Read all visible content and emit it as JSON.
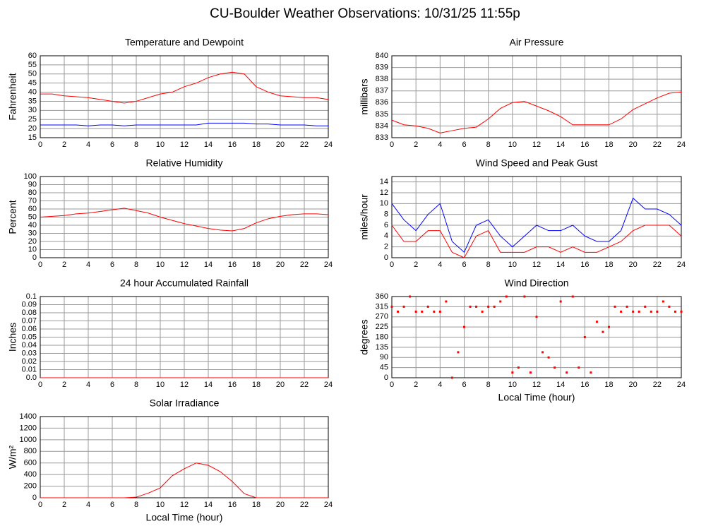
{
  "title": "CU-Boulder Weather Observations: 10/31/25 11:55p",
  "chart_data": [
    {
      "type": "line",
      "title": "Temperature and Dewpoint",
      "ylabel": "Fahrenheit",
      "x": [
        0,
        1,
        2,
        3,
        4,
        5,
        6,
        7,
        8,
        9,
        10,
        11,
        12,
        13,
        14,
        15,
        16,
        17,
        18,
        19,
        20,
        21,
        22,
        23,
        24
      ],
      "series": [
        {
          "color": "#ff0000",
          "values": [
            39,
            39,
            38,
            37.5,
            37,
            36,
            35,
            34,
            35,
            37,
            39,
            40,
            43,
            45,
            48,
            50,
            51,
            50,
            43,
            40,
            38,
            37.5,
            37,
            37,
            36
          ]
        },
        {
          "color": "#0000ff",
          "values": [
            22,
            22,
            22,
            22,
            21.5,
            22,
            22,
            21.5,
            22,
            22,
            22,
            22,
            22,
            22,
            23,
            23,
            23,
            23,
            22.5,
            22.5,
            22,
            22,
            22,
            21.5,
            21.5
          ]
        }
      ],
      "xlim": [
        0,
        24
      ],
      "xticks": [
        0,
        2,
        4,
        6,
        8,
        10,
        12,
        14,
        16,
        18,
        20,
        22,
        24
      ],
      "ylim": [
        15,
        60
      ],
      "yticks": [
        15,
        20,
        25,
        30,
        35,
        40,
        45,
        50,
        55,
        60
      ],
      "grid": true
    },
    {
      "type": "line",
      "title": "Air Pressure",
      "ylabel": "millibars",
      "x": [
        0,
        1,
        2,
        3,
        4,
        5,
        6,
        7,
        8,
        9,
        10,
        11,
        12,
        13,
        14,
        15,
        16,
        17,
        18,
        19,
        20,
        21,
        22,
        23,
        24
      ],
      "series": [
        {
          "color": "#ff0000",
          "values": [
            834.5,
            834.1,
            834,
            833.8,
            833.4,
            833.6,
            833.8,
            833.9,
            834.6,
            835.5,
            836,
            836.1,
            835.7,
            835.3,
            834.8,
            834.1,
            834.1,
            834.1,
            834.1,
            834.6,
            835.4,
            835.9,
            836.4,
            836.8,
            836.9
          ]
        }
      ],
      "xlim": [
        0,
        24
      ],
      "xticks": [
        0,
        2,
        4,
        6,
        8,
        10,
        12,
        14,
        16,
        18,
        20,
        22,
        24
      ],
      "ylim": [
        833,
        840
      ],
      "yticks": [
        833,
        834,
        835,
        836,
        837,
        838,
        839,
        840
      ],
      "grid": true
    },
    {
      "type": "line",
      "title": "Relative Humidity",
      "ylabel": "Percent",
      "x": [
        0,
        1,
        2,
        3,
        4,
        5,
        6,
        7,
        8,
        9,
        10,
        11,
        12,
        13,
        14,
        15,
        16,
        17,
        18,
        19,
        20,
        21,
        22,
        23,
        24
      ],
      "series": [
        {
          "color": "#ff0000",
          "values": [
            50,
            51,
            52,
            54,
            55,
            57,
            59,
            61,
            58,
            55,
            50,
            46,
            42,
            39,
            36,
            34,
            33,
            36,
            43,
            48,
            51,
            53,
            54,
            54,
            53
          ]
        }
      ],
      "xlim": [
        0,
        24
      ],
      "xticks": [
        0,
        2,
        4,
        6,
        8,
        10,
        12,
        14,
        16,
        18,
        20,
        22,
        24
      ],
      "ylim": [
        0,
        100
      ],
      "yticks": [
        0,
        10,
        20,
        30,
        40,
        50,
        60,
        70,
        80,
        90,
        100
      ],
      "grid": true
    },
    {
      "type": "line",
      "title": "Wind Speed and Peak Gust",
      "ylabel": "miles/hour",
      "x": [
        0,
        1,
        2,
        3,
        4,
        5,
        6,
        7,
        8,
        9,
        10,
        11,
        12,
        13,
        14,
        15,
        16,
        17,
        18,
        19,
        20,
        21,
        22,
        23,
        24
      ],
      "series": [
        {
          "color": "#0000ff",
          "values": [
            10,
            7,
            5,
            8,
            10,
            3,
            1,
            6,
            7,
            4,
            2,
            4,
            6,
            5,
            5,
            6,
            4,
            3,
            3,
            5,
            11,
            9,
            9,
            8,
            6
          ]
        },
        {
          "color": "#ff0000",
          "values": [
            6,
            3,
            3,
            5,
            5,
            1,
            0,
            4,
            5,
            1,
            1,
            1,
            2,
            2,
            1,
            2,
            1,
            1,
            2,
            3,
            5,
            6,
            6,
            6,
            4
          ]
        }
      ],
      "xlim": [
        0,
        24
      ],
      "xticks": [
        0,
        2,
        4,
        6,
        8,
        10,
        12,
        14,
        16,
        18,
        20,
        22,
        24
      ],
      "ylim": [
        0,
        15
      ],
      "yticks": [
        0,
        2,
        4,
        6,
        8,
        10,
        12,
        14
      ],
      "grid": true
    },
    {
      "type": "line",
      "title": "24 hour Accumulated Rainfall",
      "ylabel": "Inches",
      "x": [
        0,
        1,
        2,
        3,
        4,
        5,
        6,
        7,
        8,
        9,
        10,
        11,
        12,
        13,
        14,
        15,
        16,
        17,
        18,
        19,
        20,
        21,
        22,
        23,
        24
      ],
      "series": [
        {
          "color": "#ff0000",
          "values": [
            0,
            0,
            0,
            0,
            0,
            0,
            0,
            0,
            0,
            0,
            0,
            0,
            0,
            0,
            0,
            0,
            0,
            0,
            0,
            0,
            0,
            0,
            0,
            0,
            0
          ]
        }
      ],
      "xlim": [
        0,
        24
      ],
      "xticks": [
        0,
        2,
        4,
        6,
        8,
        10,
        12,
        14,
        16,
        18,
        20,
        22,
        24
      ],
      "ylim": [
        0,
        0.1
      ],
      "yticks": [
        {
          "value": 0,
          "label": "0.0"
        },
        0.01,
        0.02,
        0.03,
        0.04,
        0.05,
        0.06,
        0.07,
        0.08,
        0.09,
        0.1
      ],
      "grid": true
    },
    {
      "type": "scatter",
      "title": "Wind Direction",
      "ylabel": "degrees",
      "xlabel": "Local Time (hour)",
      "x": [
        0,
        0.5,
        1,
        1.5,
        2,
        2.5,
        3,
        3.5,
        4,
        4.5,
        5,
        5.5,
        6,
        6.5,
        7,
        7.5,
        8,
        8.5,
        9,
        9.5,
        10,
        10.5,
        11,
        11.5,
        12,
        12.5,
        13,
        13.5,
        14,
        14.5,
        15,
        15.5,
        16,
        16.5,
        17,
        17.5,
        18,
        18.5,
        19,
        19.5,
        20,
        20.5,
        21,
        21.5,
        22,
        22.5,
        23,
        23.5,
        24
      ],
      "series": [
        {
          "color": "#ff0000",
          "values": [
            315,
            293,
            315,
            360,
            293,
            293,
            315,
            293,
            293,
            338,
            0,
            113,
            225,
            315,
            315,
            293,
            315,
            315,
            338,
            360,
            23,
            45,
            360,
            23,
            270,
            113,
            90,
            45,
            338,
            23,
            360,
            45,
            180,
            23,
            248,
            203,
            225,
            315,
            293,
            315,
            293,
            293,
            315,
            293,
            293,
            338,
            315,
            293,
            293
          ]
        }
      ],
      "xlim": [
        0,
        24
      ],
      "xticks": [
        0,
        2,
        4,
        6,
        8,
        10,
        12,
        14,
        16,
        18,
        20,
        22,
        24
      ],
      "ylim": [
        0,
        360
      ],
      "yticks": [
        0,
        45,
        90,
        135,
        180,
        225,
        270,
        315,
        360
      ],
      "grid": true
    },
    {
      "type": "line",
      "title": "Solar Irradiance",
      "ylabel": "W/m²",
      "xlabel": "Local Time (hour)",
      "x": [
        0,
        1,
        2,
        3,
        4,
        5,
        6,
        7,
        8,
        9,
        10,
        11,
        12,
        13,
        14,
        15,
        16,
        17,
        18,
        19,
        20,
        21,
        22,
        23,
        24
      ],
      "series": [
        {
          "color": "#ff0000",
          "values": [
            0,
            0,
            0,
            0,
            0,
            0,
            0,
            0,
            10,
            80,
            170,
            380,
            500,
            600,
            560,
            450,
            280,
            70,
            0,
            0,
            0,
            0,
            0,
            0,
            0
          ]
        }
      ],
      "xlim": [
        0,
        24
      ],
      "xticks": [
        0,
        2,
        4,
        6,
        8,
        10,
        12,
        14,
        16,
        18,
        20,
        22,
        24
      ],
      "ylim": [
        0,
        1400
      ],
      "yticks": [
        0,
        200,
        400,
        600,
        800,
        1000,
        1200,
        1400
      ],
      "grid": true
    }
  ]
}
